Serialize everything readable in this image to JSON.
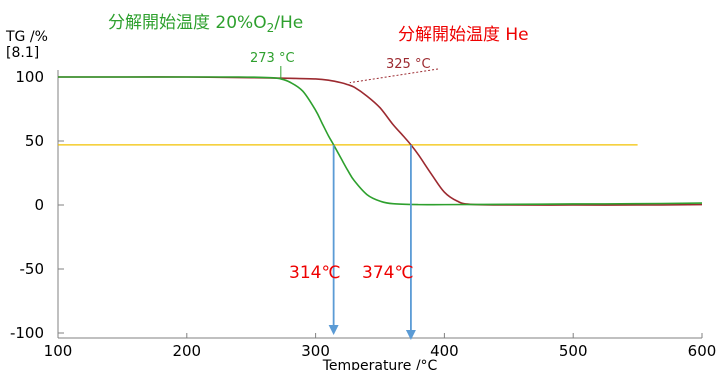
{
  "chart_data": {
    "type": "line",
    "y_axis_title": "TG /%",
    "y_axis_subtitle": "[8.1]",
    "xlabel": "Temperature /°C",
    "xlim": [
      100,
      600
    ],
    "ylim": [
      -100,
      100
    ],
    "x_ticks": [
      100,
      200,
      300,
      400,
      500,
      600
    ],
    "y_ticks": [
      -100,
      -50,
      0,
      50,
      100
    ],
    "grid": false,
    "series": [
      {
        "name": "分解開始温度 20%O2/He",
        "color": "#2ea02e",
        "x": [
          100,
          150,
          200,
          240,
          265,
          273,
          280,
          290,
          300,
          305,
          310,
          314,
          320,
          325,
          330,
          340,
          350,
          360,
          380,
          400,
          450,
          500,
          550,
          600
        ],
        "y": [
          100,
          100,
          100,
          100,
          99.5,
          98.5,
          96,
          89,
          74,
          64,
          54,
          47,
          36,
          27,
          19,
          8,
          3,
          1,
          0.3,
          0.3,
          0.5,
          0.8,
          1,
          1.5
        ]
      },
      {
        "name": "分解開始温度 He",
        "color": "#9c2a30",
        "x": [
          100,
          150,
          200,
          250,
          280,
          300,
          310,
          320,
          325,
          330,
          340,
          350,
          360,
          368,
          374,
          380,
          390,
          400,
          410,
          420,
          450,
          500,
          550,
          600
        ],
        "y": [
          100,
          100,
          100,
          99.5,
          99,
          98.5,
          97.5,
          95.5,
          94,
          92,
          85,
          76,
          63,
          54,
          47,
          39,
          24,
          10,
          3,
          0.5,
          0,
          0,
          0,
          0.3
        ]
      }
    ],
    "reference_line": {
      "y": 47,
      "x_range": [
        100,
        550
      ],
      "color": "#f2c200"
    },
    "annotations": {
      "title_green_prefix": "分解開始温度 20%O",
      "title_green_sub": "2",
      "title_green_suffix": "/He",
      "title_red": "分解開始温度 He",
      "onset_green": {
        "label": "273 °C",
        "x": 273
      },
      "onset_red": {
        "label": "325 °C",
        "x": 325
      },
      "half_green": {
        "label": "314℃",
        "x": 314
      },
      "half_red": {
        "label": "374℃",
        "x": 374
      }
    },
    "colors": {
      "green": "#2ea02e",
      "red": "#9c2a30",
      "label_red": "#ee0000",
      "arrow": "#5b9bd5",
      "axis": "#808080",
      "reference": "#f2c200"
    }
  }
}
